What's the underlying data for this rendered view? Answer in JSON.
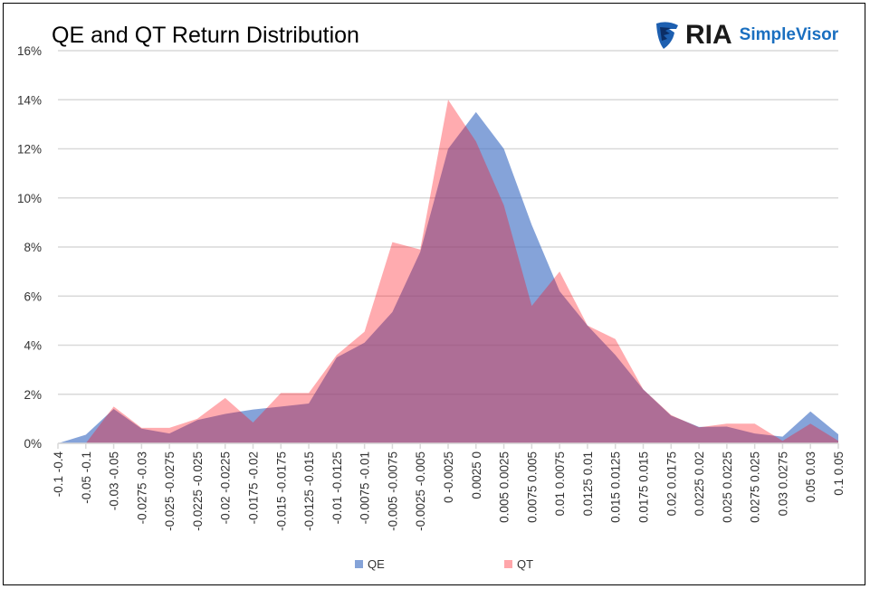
{
  "chart_data": {
    "type": "area",
    "title": "QE and QT Return Distribution",
    "xlabel": "",
    "ylabel": "",
    "ylim": [
      0,
      16
    ],
    "y_ticks": [
      "0%",
      "2%",
      "4%",
      "6%",
      "8%",
      "10%",
      "12%",
      "14%",
      "16%"
    ],
    "y_tick_values": [
      0,
      2,
      4,
      6,
      8,
      10,
      12,
      14,
      16
    ],
    "grid": true,
    "legend_position": "bottom",
    "categories": [
      "-0.1 -0.4",
      "-0.05 -0.1",
      "-0.03 -0.05",
      "-0.0275 -0.03",
      "-0.025 -0.0275",
      "-0.0225 -0.025",
      "-0.02 -0.0225",
      "-0.0175 -0.02",
      "-0.015 -0.0175",
      "-0.0125 -0.015",
      "-0.01 -0.0125",
      "-0.0075 -0.01",
      "-0.005 -0.0075",
      "-0.0025 -0.005",
      "0 -0.0025",
      "0.0025 0",
      "0.005 0.0025",
      "0.0075 0.005",
      "0.01 0.0075",
      "0.0125 0.01",
      "0.015 0.0125",
      "0.0175 0.015",
      "0.02 0.0175",
      "0.0225 0.02",
      "0.025 0.0225",
      "0.0275 0.025",
      "0.03 0.0275",
      "0.05 0.03",
      "0.1 0.05"
    ],
    "series": [
      {
        "name": "QE",
        "color": "#4472C4",
        "values": [
          0,
          0.35,
          1.4,
          0.6,
          0.4,
          0.95,
          1.2,
          1.38,
          1.5,
          1.62,
          3.5,
          4.1,
          5.35,
          7.8,
          12.0,
          13.5,
          12.0,
          8.9,
          6.2,
          4.8,
          3.6,
          2.2,
          1.13,
          0.67,
          0.68,
          0.4,
          0.27,
          1.3,
          0.37
        ]
      },
      {
        "name": "QT",
        "color": "#FF7C80",
        "values": [
          0,
          0,
          1.5,
          0.63,
          0.63,
          1.0,
          1.85,
          0.85,
          2.05,
          2.05,
          3.6,
          4.55,
          8.2,
          7.9,
          14.0,
          12.3,
          9.7,
          5.6,
          7.0,
          4.8,
          4.25,
          2.2,
          1.15,
          0.65,
          0.8,
          0.8,
          0.1,
          0.8,
          0.1
        ]
      }
    ]
  },
  "logo": {
    "brand": "RIA",
    "product": "SimpleVisor"
  }
}
